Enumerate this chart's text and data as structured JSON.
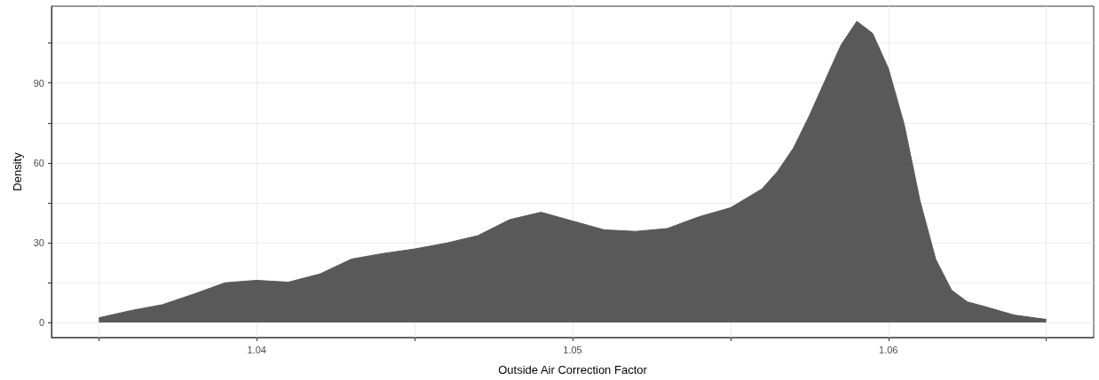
{
  "chart_data": {
    "type": "area",
    "xlabel": "Outside Air Correction Factor",
    "ylabel": "Density",
    "x": [
      1.035,
      1.036,
      1.037,
      1.038,
      1.039,
      1.04,
      1.041,
      1.042,
      1.043,
      1.044,
      1.045,
      1.046,
      1.047,
      1.048,
      1.049,
      1.05,
      1.051,
      1.052,
      1.053,
      1.054,
      1.055,
      1.056,
      1.0565,
      1.057,
      1.0575,
      1.058,
      1.0585,
      1.059,
      1.0595,
      1.06,
      1.0605,
      1.061,
      1.0615,
      1.062,
      1.0625,
      1.063,
      1.064,
      1.065
    ],
    "series": [
      {
        "color": "#595959",
        "values": [
          1.7,
          4.4,
          6.6,
          10.6,
          14.9,
          15.8,
          15.1,
          18.2,
          23.8,
          25.9,
          27.6,
          29.8,
          32.6,
          38.6,
          41.4,
          38.1,
          34.8,
          34.2,
          35.3,
          39.7,
          43.1,
          50.2,
          56.9,
          65.7,
          77.8,
          91.1,
          104.3,
          113.2,
          108.7,
          95.5,
          74.5,
          45.8,
          23.7,
          12.1,
          7.7,
          6.1,
          2.7,
          1.1
        ]
      }
    ],
    "xlim": [
      1.0335,
      1.0665
    ],
    "xticks": [
      {
        "value": 1.035,
        "label": null
      },
      {
        "value": 1.04,
        "label": "1.04"
      },
      {
        "value": 1.045,
        "label": null
      },
      {
        "value": 1.05,
        "label": "1.05"
      },
      {
        "value": 1.055,
        "label": null
      },
      {
        "value": 1.06,
        "label": "1.06"
      },
      {
        "value": 1.065,
        "label": null
      }
    ],
    "ylim": [
      -5.7,
      118.9
    ],
    "yticks": [
      0,
      {
        "value": 15,
        "label": null
      },
      30,
      {
        "value": 45,
        "label": null
      },
      60,
      {
        "value": 75,
        "label": null
      },
      90,
      {
        "value": 105,
        "label": null
      }
    ],
    "grid": true,
    "marker": "none"
  }
}
